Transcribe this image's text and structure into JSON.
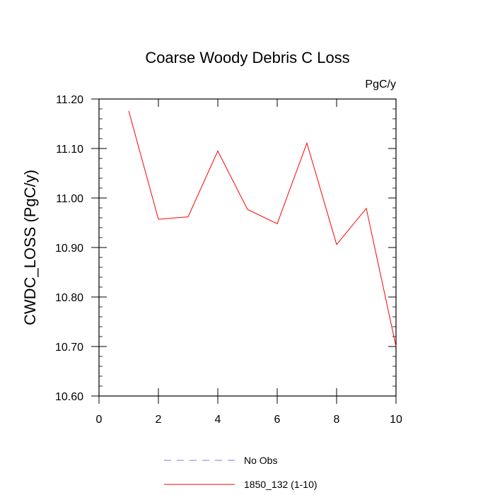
{
  "chart_data": {
    "type": "line",
    "title": "Coarse Woody Debris C Loss",
    "units_label": "PgC/y",
    "xlabel": "",
    "ylabel": "CWDC_LOSS  (PgC/y)",
    "xlim": [
      0,
      10
    ],
    "ylim": [
      10.6,
      11.2
    ],
    "x_ticks": [
      "0",
      "2",
      "4",
      "6",
      "8",
      "10"
    ],
    "y_ticks": [
      "10.60",
      "10.70",
      "10.80",
      "10.90",
      "11.00",
      "11.10",
      "11.20"
    ],
    "grid": false,
    "legend_position": "bottom",
    "series": [
      {
        "name": "No Obs",
        "color": "#7b7bf0",
        "line_style": "dashed",
        "x": [],
        "y": []
      },
      {
        "name": "1850_132 (1-10)",
        "color": "#ff0000",
        "line_style": "solid",
        "x": [
          1,
          2,
          3,
          4,
          5,
          6,
          7,
          8,
          9,
          10
        ],
        "y": [
          11.176,
          10.957,
          10.962,
          11.095,
          10.977,
          10.948,
          11.111,
          10.906,
          10.979,
          10.7
        ]
      }
    ]
  }
}
